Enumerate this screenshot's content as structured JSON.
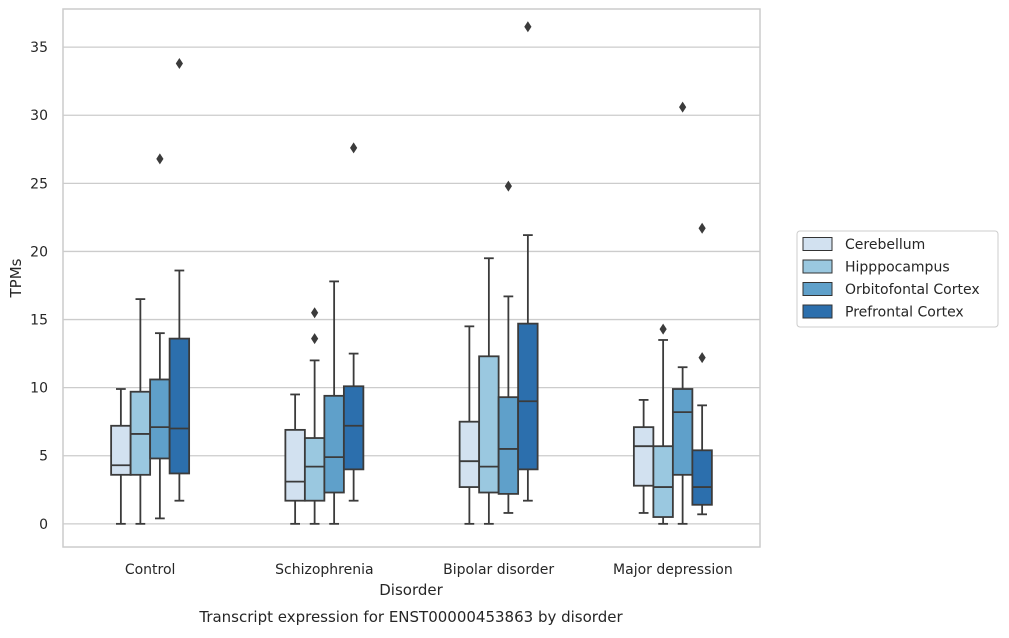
{
  "caption": "Transcript expression for ENST00000453863 by disorder",
  "chart_data": {
    "type": "box",
    "xlabel": "Disorder",
    "ylabel": "TPMs",
    "ylim": [
      -1.7,
      37.8
    ],
    "yticks": [
      0,
      5,
      10,
      15,
      20,
      25,
      30,
      35
    ],
    "grid": "horizontal",
    "legend_position": "right",
    "categories": [
      "Control",
      "Schizophrenia",
      "Bipolar disorder",
      "Major depression"
    ],
    "series": [
      {
        "name": "Cerebellum",
        "color": "#d2e1f0",
        "boxes": [
          {
            "whisker_low": 0.0,
            "q1": 3.6,
            "median": 4.3,
            "q3": 7.2,
            "whisker_high": 9.9,
            "outliers": []
          },
          {
            "whisker_low": 0.0,
            "q1": 1.7,
            "median": 3.1,
            "q3": 6.9,
            "whisker_high": 9.5,
            "outliers": []
          },
          {
            "whisker_low": 0.0,
            "q1": 2.7,
            "median": 4.6,
            "q3": 7.5,
            "whisker_high": 14.5,
            "outliers": []
          },
          {
            "whisker_low": 0.8,
            "q1": 2.8,
            "median": 5.7,
            "q3": 7.1,
            "whisker_high": 9.1,
            "outliers": []
          }
        ]
      },
      {
        "name": "Hipppocampus",
        "color": "#9ac8e0",
        "boxes": [
          {
            "whisker_low": 0.0,
            "q1": 3.6,
            "median": 6.6,
            "q3": 9.7,
            "whisker_high": 16.5,
            "outliers": []
          },
          {
            "whisker_low": 0.0,
            "q1": 1.7,
            "median": 4.2,
            "q3": 6.3,
            "whisker_high": 12.0,
            "outliers": [
              13.6,
              15.5
            ]
          },
          {
            "whisker_low": 0.0,
            "q1": 2.3,
            "median": 4.2,
            "q3": 12.3,
            "whisker_high": 19.5,
            "outliers": []
          },
          {
            "whisker_low": 0.0,
            "q1": 0.5,
            "median": 2.7,
            "q3": 5.7,
            "whisker_high": 13.5,
            "outliers": [
              14.3
            ]
          }
        ]
      },
      {
        "name": "Orbitofontal Cortex",
        "color": "#5fa0ca",
        "boxes": [
          {
            "whisker_low": 0.4,
            "q1": 4.8,
            "median": 7.1,
            "q3": 10.6,
            "whisker_high": 14.0,
            "outliers": [
              26.8
            ]
          },
          {
            "whisker_low": 0.0,
            "q1": 2.3,
            "median": 4.9,
            "q3": 9.4,
            "whisker_high": 17.8,
            "outliers": []
          },
          {
            "whisker_low": 0.8,
            "q1": 2.2,
            "median": 5.5,
            "q3": 9.3,
            "whisker_high": 16.7,
            "outliers": [
              24.8
            ]
          },
          {
            "whisker_low": 0.0,
            "q1": 3.6,
            "median": 8.2,
            "q3": 9.9,
            "whisker_high": 11.5,
            "outliers": [
              30.6
            ]
          }
        ]
      },
      {
        "name": "Prefrontal Cortex",
        "color": "#2c6fad",
        "boxes": [
          {
            "whisker_low": 1.7,
            "q1": 3.7,
            "median": 7.0,
            "q3": 13.6,
            "whisker_high": 18.6,
            "outliers": [
              33.8
            ]
          },
          {
            "whisker_low": 1.7,
            "q1": 4.0,
            "median": 7.2,
            "q3": 10.1,
            "whisker_high": 12.5,
            "outliers": [
              27.6
            ]
          },
          {
            "whisker_low": 1.7,
            "q1": 4.0,
            "median": 9.0,
            "q3": 14.7,
            "whisker_high": 21.2,
            "outliers": [
              36.5
            ]
          },
          {
            "whisker_low": 0.7,
            "q1": 1.4,
            "median": 2.7,
            "q3": 5.4,
            "whisker_high": 8.7,
            "outliers": [
              12.2,
              21.7
            ]
          }
        ]
      }
    ]
  }
}
